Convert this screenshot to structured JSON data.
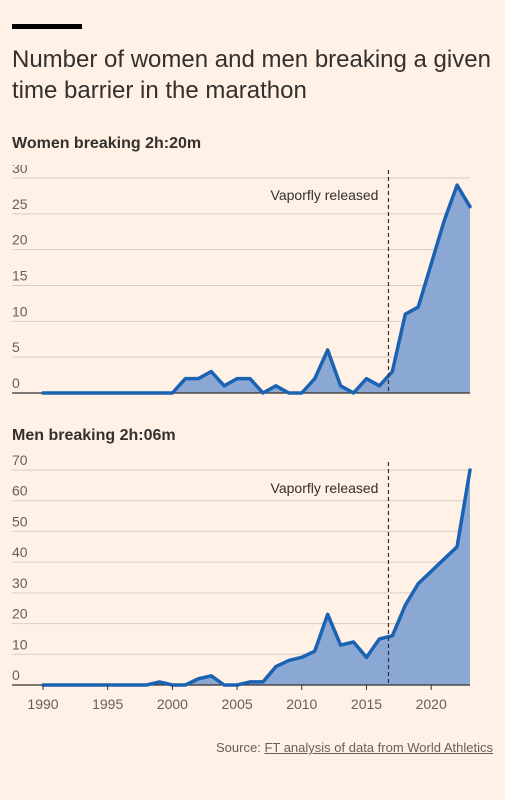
{
  "header": {
    "title": "Number of women and men breaking a given time barrier in the marathon"
  },
  "colors": {
    "line": "#1B62B3",
    "fill": "#8AA8D3",
    "grid": "#D9CCC1",
    "axis": "#33302E",
    "background": "#FFF1E5"
  },
  "source": {
    "prefix": "Source: ",
    "link_text": "FT analysis of data from World Athletics"
  },
  "chart_data": [
    {
      "type": "area",
      "title": "Women breaking 2h:20m",
      "x": [
        1990,
        1991,
        1992,
        1993,
        1994,
        1995,
        1996,
        1997,
        1998,
        1999,
        2000,
        2001,
        2002,
        2003,
        2004,
        2005,
        2006,
        2007,
        2008,
        2009,
        2010,
        2011,
        2012,
        2013,
        2014,
        2015,
        2016,
        2017,
        2018,
        2019,
        2020,
        2021,
        2022,
        2023
      ],
      "values": [
        0,
        0,
        0,
        0,
        0,
        0,
        0,
        0,
        0,
        0,
        0,
        2,
        2,
        3,
        1,
        2,
        2,
        0,
        1,
        0,
        0,
        2,
        6,
        1,
        0,
        2,
        1,
        3,
        11,
        12,
        18,
        24,
        29,
        26
      ],
      "ylim": [
        0,
        30
      ],
      "yticks": [
        0,
        5,
        10,
        15,
        20,
        25,
        30
      ],
      "xlim": [
        1990,
        2023
      ],
      "grid": true,
      "annotation": {
        "label": "Vaporfly released",
        "x": 2016.7
      }
    },
    {
      "type": "area",
      "title": "Men breaking 2h:06m",
      "x": [
        1990,
        1991,
        1992,
        1993,
        1994,
        1995,
        1996,
        1997,
        1998,
        1999,
        2000,
        2001,
        2002,
        2003,
        2004,
        2005,
        2006,
        2007,
        2008,
        2009,
        2010,
        2011,
        2012,
        2013,
        2014,
        2015,
        2016,
        2017,
        2018,
        2019,
        2020,
        2021,
        2022,
        2023
      ],
      "values": [
        0,
        0,
        0,
        0,
        0,
        0,
        0,
        0,
        0,
        1,
        0,
        0,
        2,
        3,
        0,
        0,
        1,
        1,
        6,
        8,
        9,
        11,
        23,
        13,
        14,
        9,
        15,
        16,
        26,
        33,
        37,
        41,
        45,
        70
      ],
      "ylim": [
        0,
        70
      ],
      "yticks": [
        0,
        10,
        20,
        30,
        40,
        50,
        60,
        70
      ],
      "xlim": [
        1990,
        2023
      ],
      "xticks": [
        1990,
        1995,
        2000,
        2005,
        2010,
        2015,
        2020
      ],
      "grid": true,
      "annotation": {
        "label": "Vaporfly released",
        "x": 2016.7
      }
    }
  ]
}
